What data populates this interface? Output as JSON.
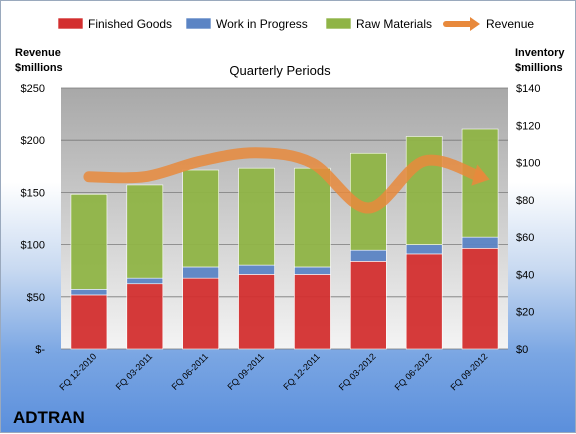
{
  "chart_data": {
    "type": "bar",
    "company": "ADTRAN",
    "subtitle": "Quarterly Periods",
    "left_axis_title": [
      "Revenue",
      "$millions"
    ],
    "right_axis_title": [
      "Inventory",
      "$millions"
    ],
    "categories": [
      "FQ 12-2010",
      "FQ 03-2011",
      "FQ 06-2011",
      "FQ 09-2011",
      "FQ 12-2011",
      "FQ 03-2012",
      "FQ 06-2012",
      "FQ 09-2012"
    ],
    "series": [
      {
        "name": "Finished Goods",
        "axis": "right",
        "values": [
          29,
          35,
          38,
          40,
          40,
          47,
          51,
          54
        ],
        "color": "#d32f2f"
      },
      {
        "name": "Work in Progress",
        "axis": "right",
        "values": [
          3,
          3,
          6,
          5,
          4,
          6,
          5,
          6
        ],
        "color": "#5b84c4"
      },
      {
        "name": "Raw Materials",
        "axis": "right",
        "values": [
          51,
          50,
          52,
          52,
          53,
          52,
          58,
          58
        ],
        "color": "#8fb446"
      },
      {
        "name": "Revenue",
        "axis": "left",
        "type": "line",
        "values": [
          165,
          165,
          180,
          188,
          178,
          135,
          180,
          165
        ],
        "color": "#e8893c"
      }
    ],
    "left_axis": {
      "min": 0,
      "max": 250,
      "ticks": [
        "$-",
        "$50",
        "$100",
        "$150",
        "$200",
        "$250"
      ]
    },
    "right_axis": {
      "min": 0,
      "max": 140,
      "ticks": [
        "$0",
        "$20",
        "$40",
        "$60",
        "$80",
        "$100",
        "$120",
        "$140"
      ]
    },
    "legend_position": "top",
    "grid": true
  }
}
